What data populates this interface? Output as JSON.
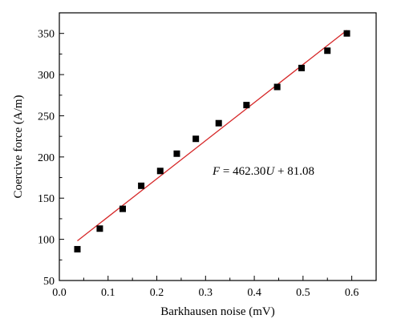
{
  "chart_data": {
    "type": "scatter",
    "title": "",
    "xlabel": "Barkhausen noise (mV)",
    "ylabel": "Coercive force (A/m)",
    "xlim": [
      0.0,
      0.65
    ],
    "ylim": [
      50,
      375
    ],
    "x_ticks": [
      0.0,
      0.1,
      0.2,
      0.3,
      0.4,
      0.5,
      0.6
    ],
    "x_tick_labels": [
      "0.0",
      "0.1",
      "0.2",
      "0.3",
      "0.4",
      "0.5",
      "0.6"
    ],
    "y_ticks": [
      50,
      100,
      150,
      200,
      250,
      300,
      350
    ],
    "y_tick_labels": [
      "50",
      "100",
      "150",
      "200",
      "250",
      "300",
      "350"
    ],
    "grid": false,
    "legend": "none",
    "series": [
      {
        "marker": "square",
        "color": "#000000",
        "x": [
          0.037,
          0.083,
          0.13,
          0.168,
          0.207,
          0.241,
          0.28,
          0.327,
          0.384,
          0.447,
          0.497,
          0.55,
          0.59
        ],
        "y": [
          88,
          113,
          137,
          165,
          183,
          204,
          222,
          241,
          263,
          285,
          308,
          329,
          350
        ]
      }
    ],
    "fit_line": {
      "color": "#d62728",
      "slope": 462.3,
      "intercept": 81.08,
      "x_range": [
        0.037,
        0.59
      ]
    },
    "annotations": {
      "equation_parts": [
        "F",
        " = 462.30",
        "U",
        " + 81.08"
      ]
    }
  }
}
